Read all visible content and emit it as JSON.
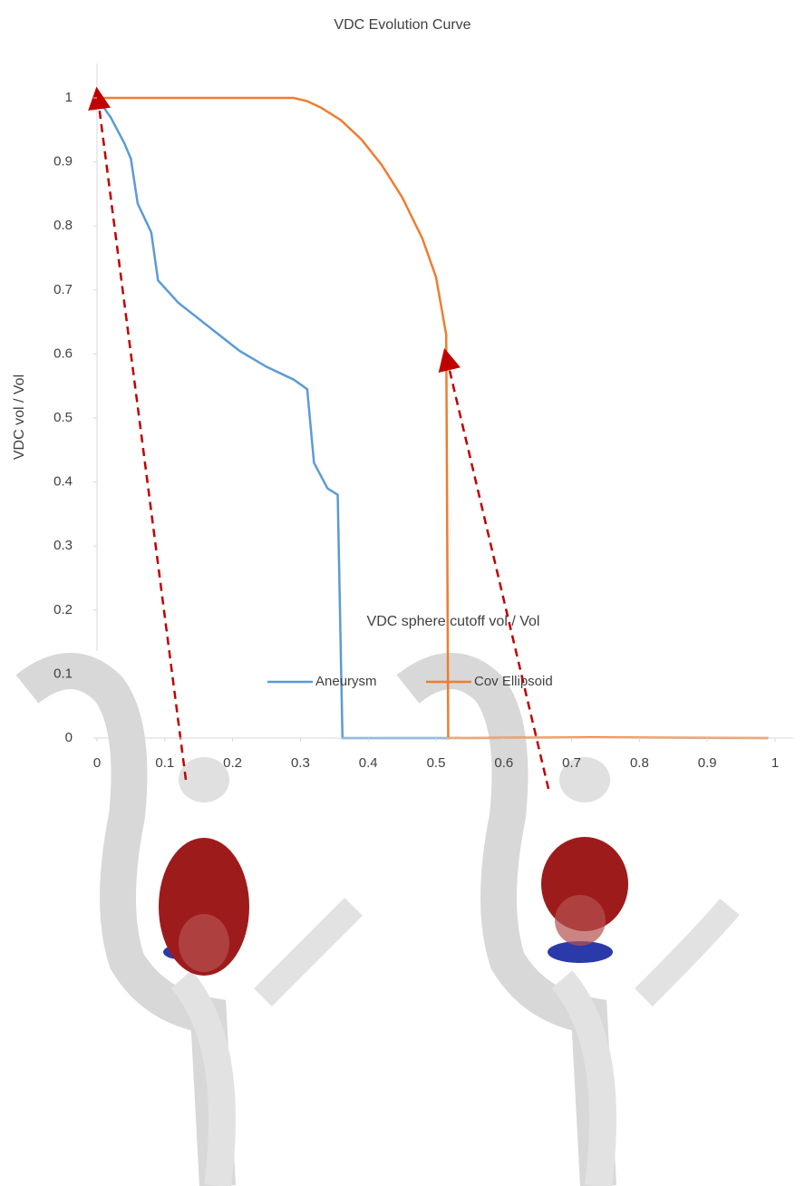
{
  "chart_data": {
    "type": "line",
    "title": "VDC Evolution  Curve",
    "x_label": "VDC sphere cutoff vol / Vol",
    "y_label": "VDC vol / Vol",
    "xlim": [
      0,
      1
    ],
    "ylim": [
      0,
      1
    ],
    "xticks": [
      0,
      0.1,
      0.2,
      0.3,
      0.4,
      0.5,
      0.6,
      0.7,
      0.8,
      0.9,
      1
    ],
    "yticks": [
      0,
      0.1,
      0.2,
      0.3,
      0.4,
      0.5,
      0.6,
      0.7,
      0.8,
      0.9,
      1
    ],
    "legend": "bottom",
    "series": [
      {
        "name": "Aneurysm",
        "color": "#5b9bd5",
        "x": [
          0,
          0.02,
          0.04,
          0.05,
          0.06,
          0.08,
          0.09,
          0.12,
          0.15,
          0.18,
          0.21,
          0.25,
          0.29,
          0.31,
          0.32,
          0.34,
          0.355,
          0.362,
          0.52
        ],
        "values": [
          1,
          0.97,
          0.93,
          0.905,
          0.835,
          0.79,
          0.715,
          0.68,
          0.655,
          0.63,
          0.605,
          0.58,
          0.56,
          0.545,
          0.43,
          0.39,
          0.38,
          0,
          0
        ]
      },
      {
        "name": "Cov Ellipsoid",
        "color": "#ed7d31",
        "x": [
          0,
          0.29,
          0.31,
          0.33,
          0.36,
          0.39,
          0.42,
          0.45,
          0.48,
          0.5,
          0.515,
          0.518,
          0.73,
          0.99
        ],
        "values": [
          1,
          1,
          0.995,
          0.985,
          0.965,
          0.935,
          0.895,
          0.845,
          0.78,
          0.72,
          0.63,
          0,
          0.001,
          0
        ]
      }
    ]
  }
}
